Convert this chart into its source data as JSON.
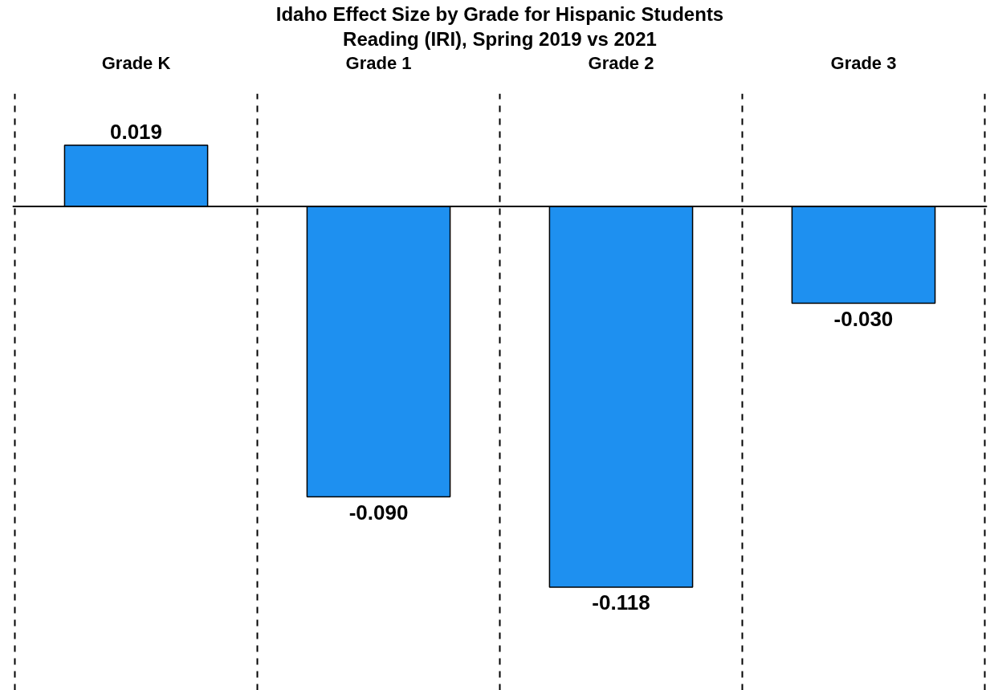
{
  "chart_data": {
    "type": "bar",
    "title": "Idaho Effect Size by Grade for Hispanic Students",
    "subtitle": "Reading (IRI), Spring 2019 vs 2021",
    "categories": [
      "Grade K",
      "Grade 1",
      "Grade 2",
      "Grade 3"
    ],
    "values": [
      0.019,
      -0.09,
      -0.118,
      -0.03
    ],
    "color": "#1e90f0",
    "ylim": [
      -0.15,
      0.035
    ],
    "value_labels": [
      "0.019",
      "-0.090",
      "-0.118",
      "-0.030"
    ],
    "grid": "x",
    "tick_labels": "x"
  }
}
